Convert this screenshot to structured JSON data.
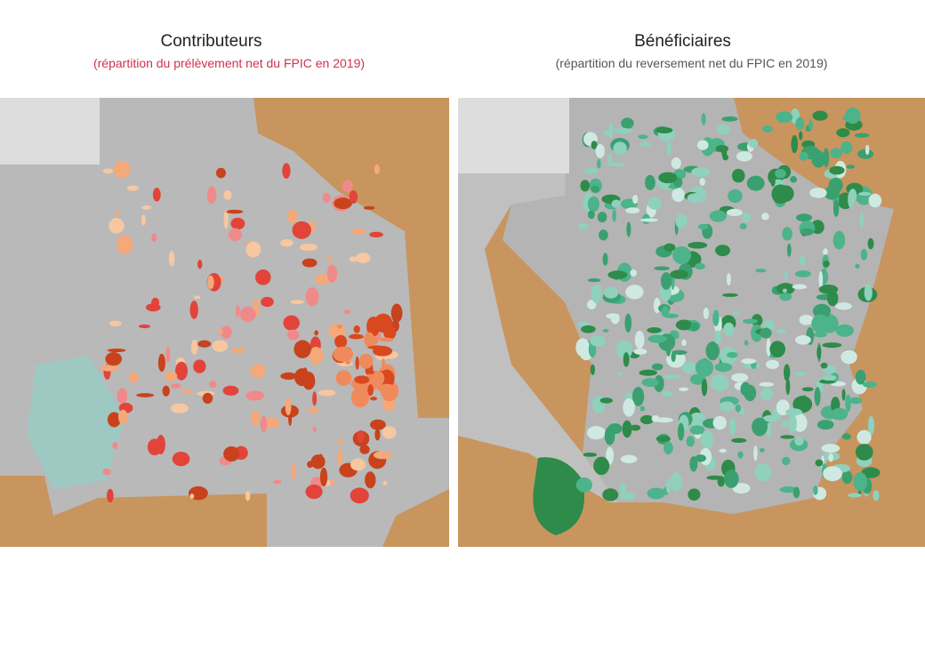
{
  "maps": [
    {
      "title": "Contributeurs",
      "subtitle": "(répartition du prélèvement net du FPIC en 2019)"
    },
    {
      "title": "Bénéficiaires",
      "subtitle": "(répartition du reversement net du FPIC en 2019)"
    }
  ]
}
